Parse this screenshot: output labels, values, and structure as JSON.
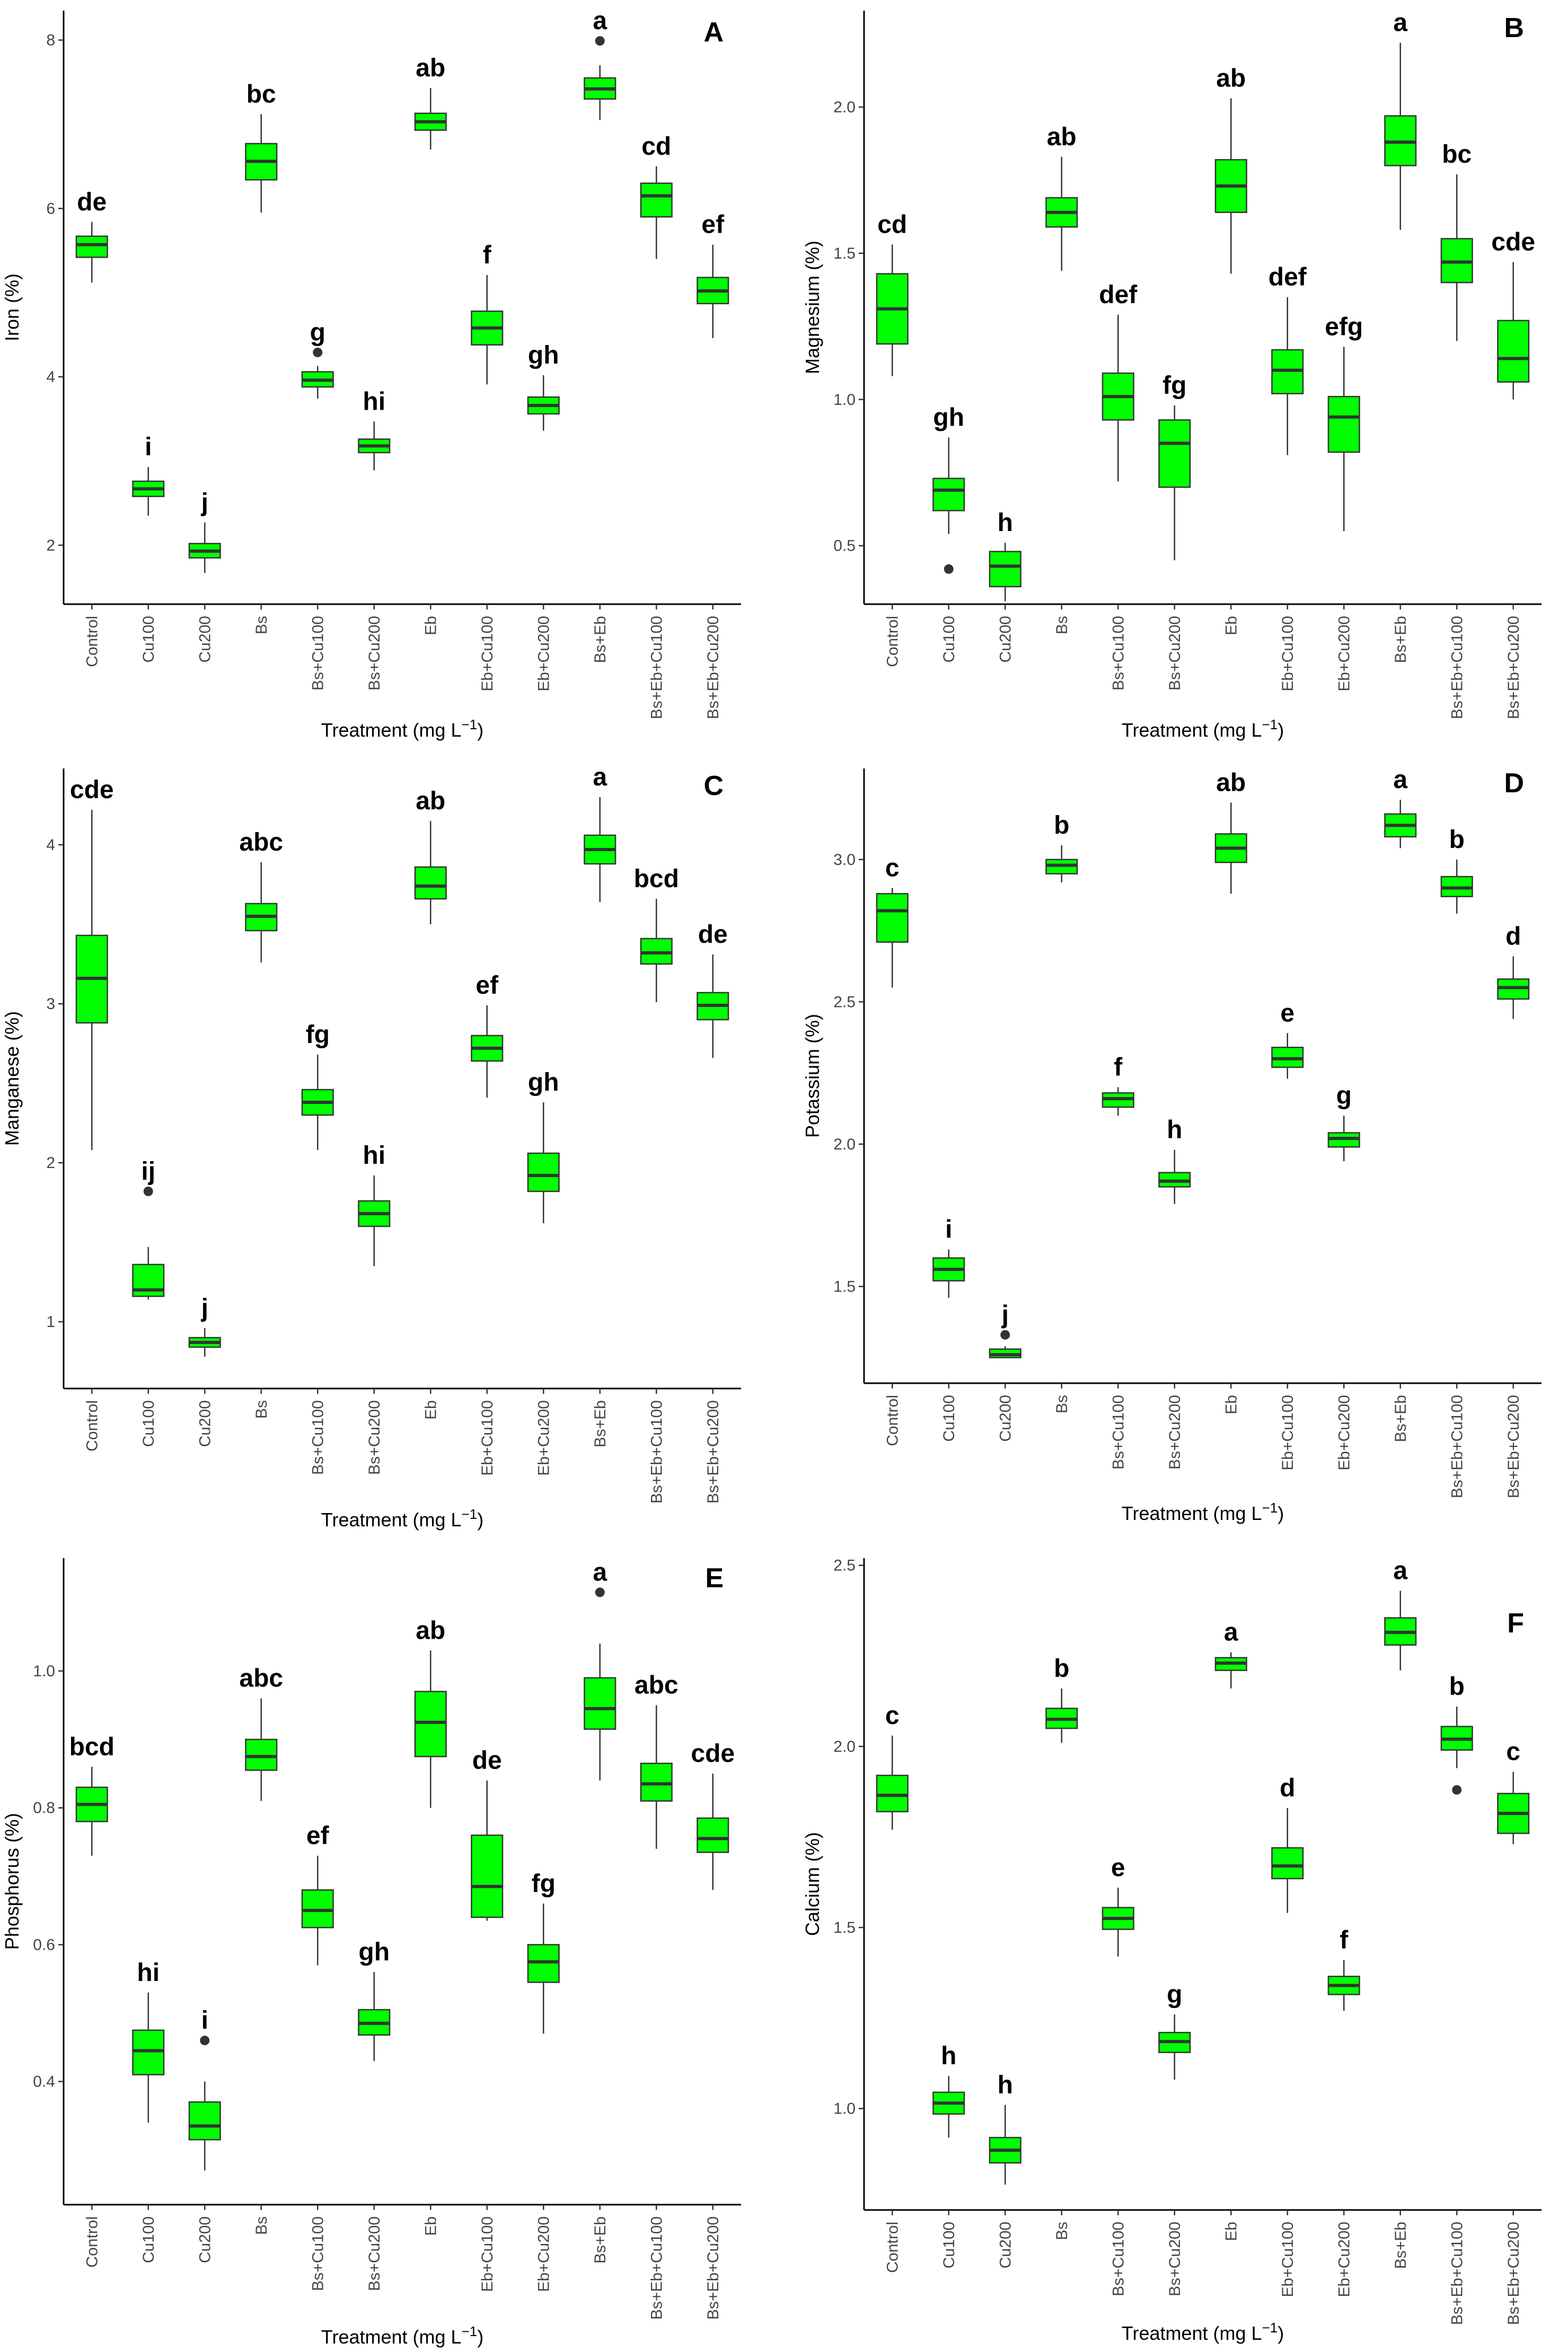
{
  "figure": {
    "box_fill": "#00FF00",
    "box_stroke": "#333333"
  },
  "chart_data": [
    {
      "type": "box",
      "panel_label": "A",
      "xlabel": "Treatment (mg L",
      "xlabel_sup": "−1",
      "xlabel_end": ")",
      "ylabel": "Iron (%)",
      "ylim": [
        1.3,
        8.35
      ],
      "yticks": [
        2,
        4,
        6,
        8
      ],
      "categories": [
        "Control",
        "Cu100",
        "Cu200",
        "Bs",
        "Bs+Cu100",
        "Bs+Cu200",
        "Eb",
        "Eb+Cu100",
        "Eb+Cu200",
        "Bs+Eb",
        "Bs+Eb+Cu100",
        "Bs+Eb+Cu200"
      ],
      "boxes": [
        {
          "min": 5.12,
          "q1": 5.42,
          "median": 5.57,
          "q3": 5.67,
          "max": 5.84,
          "outliers": [],
          "letter": "de"
        },
        {
          "min": 2.35,
          "q1": 2.58,
          "median": 2.67,
          "q3": 2.76,
          "max": 2.93,
          "outliers": [],
          "letter": "i"
        },
        {
          "min": 1.67,
          "q1": 1.85,
          "median": 1.93,
          "q3": 2.02,
          "max": 2.27,
          "outliers": [],
          "letter": "j"
        },
        {
          "min": 5.95,
          "q1": 6.34,
          "median": 6.56,
          "q3": 6.77,
          "max": 7.12,
          "outliers": [],
          "letter": "bc"
        },
        {
          "min": 3.74,
          "q1": 3.88,
          "median": 3.96,
          "q3": 4.06,
          "max": 4.13,
          "outliers": [
            4.29
          ],
          "letter": "g"
        },
        {
          "min": 2.89,
          "q1": 3.1,
          "median": 3.18,
          "q3": 3.26,
          "max": 3.47,
          "outliers": [],
          "letter": "hi"
        },
        {
          "min": 6.7,
          "q1": 6.93,
          "median": 7.03,
          "q3": 7.13,
          "max": 7.43,
          "outliers": [],
          "letter": "ab"
        },
        {
          "min": 3.91,
          "q1": 4.38,
          "median": 4.58,
          "q3": 4.78,
          "max": 5.21,
          "outliers": [],
          "letter": "f"
        },
        {
          "min": 3.36,
          "q1": 3.56,
          "median": 3.66,
          "q3": 3.76,
          "max": 4.02,
          "outliers": [],
          "letter": "gh"
        },
        {
          "min": 7.05,
          "q1": 7.3,
          "median": 7.42,
          "q3": 7.55,
          "max": 7.7,
          "outliers": [
            7.99
          ],
          "letter": "a"
        },
        {
          "min": 5.4,
          "q1": 5.9,
          "median": 6.15,
          "q3": 6.3,
          "max": 6.5,
          "outliers": [],
          "letter": "cd"
        },
        {
          "min": 4.46,
          "q1": 4.87,
          "median": 5.02,
          "q3": 5.18,
          "max": 5.57,
          "outliers": [],
          "letter": "ef"
        }
      ]
    },
    {
      "type": "box",
      "panel_label": "B",
      "xlabel": "Treatment (mg L",
      "xlabel_sup": "−1",
      "xlabel_end": ")",
      "ylabel": "Magnesium (%)",
      "ylim": [
        0.3,
        2.33
      ],
      "yticks": [
        0.5,
        1.0,
        1.5,
        2.0
      ],
      "categories": [
        "Control",
        "Cu100",
        "Cu200",
        "Bs",
        "Bs+Cu100",
        "Bs+Cu200",
        "Eb",
        "Eb+Cu100",
        "Eb+Cu200",
        "Bs+Eb",
        "Bs+Eb+Cu100",
        "Bs+Eb+Cu200"
      ],
      "boxes": [
        {
          "min": 1.08,
          "q1": 1.19,
          "median": 1.31,
          "q3": 1.43,
          "max": 1.53,
          "outliers": [],
          "letter": "cd"
        },
        {
          "min": 0.54,
          "q1": 0.62,
          "median": 0.69,
          "q3": 0.73,
          "max": 0.87,
          "outliers": [
            0.42
          ],
          "letter": "gh"
        },
        {
          "min": 0.31,
          "q1": 0.36,
          "median": 0.43,
          "q3": 0.48,
          "max": 0.51,
          "outliers": [],
          "letter": "h"
        },
        {
          "min": 1.44,
          "q1": 1.59,
          "median": 1.64,
          "q3": 1.69,
          "max": 1.83,
          "outliers": [],
          "letter": "ab"
        },
        {
          "min": 0.72,
          "q1": 0.93,
          "median": 1.01,
          "q3": 1.09,
          "max": 1.29,
          "outliers": [],
          "letter": "def"
        },
        {
          "min": 0.45,
          "q1": 0.7,
          "median": 0.85,
          "q3": 0.93,
          "max": 0.98,
          "outliers": [],
          "letter": "fg"
        },
        {
          "min": 1.43,
          "q1": 1.64,
          "median": 1.73,
          "q3": 1.82,
          "max": 2.03,
          "outliers": [],
          "letter": "ab"
        },
        {
          "min": 0.81,
          "q1": 1.02,
          "median": 1.1,
          "q3": 1.17,
          "max": 1.35,
          "outliers": [],
          "letter": "def"
        },
        {
          "min": 0.55,
          "q1": 0.82,
          "median": 0.94,
          "q3": 1.01,
          "max": 1.18,
          "outliers": [],
          "letter": "efg"
        },
        {
          "min": 1.58,
          "q1": 1.8,
          "median": 1.88,
          "q3": 1.97,
          "max": 2.22,
          "outliers": [],
          "letter": "a"
        },
        {
          "min": 1.2,
          "q1": 1.4,
          "median": 1.47,
          "q3": 1.55,
          "max": 1.77,
          "outliers": [],
          "letter": "bc"
        },
        {
          "min": 1.0,
          "q1": 1.06,
          "median": 1.14,
          "q3": 1.27,
          "max": 1.47,
          "outliers": [],
          "letter": "cde"
        }
      ]
    },
    {
      "type": "box",
      "panel_label": "C",
      "xlabel": "Treatment (mg L",
      "xlabel_sup": "−1",
      "xlabel_end": ")",
      "ylabel": "Manganese (%)",
      "ylim": [
        0.58,
        4.48
      ],
      "yticks": [
        1,
        2,
        3,
        4
      ],
      "categories": [
        "Control",
        "Cu100",
        "Cu200",
        "Bs",
        "Bs+Cu100",
        "Bs+Cu200",
        "Eb",
        "Eb+Cu100",
        "Eb+Cu200",
        "Bs+Eb",
        "Bs+Eb+Cu100",
        "Bs+Eb+Cu200"
      ],
      "boxes": [
        {
          "min": 2.08,
          "q1": 2.88,
          "median": 3.16,
          "q3": 3.43,
          "max": 4.22,
          "outliers": [],
          "letter": "cde"
        },
        {
          "min": 1.14,
          "q1": 1.16,
          "median": 1.2,
          "q3": 1.36,
          "max": 1.47,
          "outliers": [
            1.82
          ],
          "letter": "ij"
        },
        {
          "min": 0.78,
          "q1": 0.84,
          "median": 0.87,
          "q3": 0.9,
          "max": 0.96,
          "outliers": [],
          "letter": "j"
        },
        {
          "min": 3.26,
          "q1": 3.46,
          "median": 3.55,
          "q3": 3.63,
          "max": 3.89,
          "outliers": [],
          "letter": "abc"
        },
        {
          "min": 2.08,
          "q1": 2.3,
          "median": 2.38,
          "q3": 2.46,
          "max": 2.68,
          "outliers": [],
          "letter": "fg"
        },
        {
          "min": 1.35,
          "q1": 1.6,
          "median": 1.68,
          "q3": 1.76,
          "max": 1.92,
          "outliers": [],
          "letter": "hi"
        },
        {
          "min": 3.5,
          "q1": 3.66,
          "median": 3.74,
          "q3": 3.86,
          "max": 4.15,
          "outliers": [],
          "letter": "ab"
        },
        {
          "min": 2.41,
          "q1": 2.64,
          "median": 2.72,
          "q3": 2.8,
          "max": 2.99,
          "outliers": [],
          "letter": "ef"
        },
        {
          "min": 1.62,
          "q1": 1.82,
          "median": 1.92,
          "q3": 2.06,
          "max": 2.38,
          "outliers": [],
          "letter": "gh"
        },
        {
          "min": 3.64,
          "q1": 3.88,
          "median": 3.97,
          "q3": 4.06,
          "max": 4.3,
          "outliers": [],
          "letter": "a"
        },
        {
          "min": 3.01,
          "q1": 3.25,
          "median": 3.32,
          "q3": 3.41,
          "max": 3.66,
          "outliers": [],
          "letter": "bcd"
        },
        {
          "min": 2.66,
          "q1": 2.9,
          "median": 2.99,
          "q3": 3.07,
          "max": 3.31,
          "outliers": [],
          "letter": "de"
        }
      ]
    },
    {
      "type": "box",
      "panel_label": "D",
      "xlabel": "Treatment (mg L",
      "xlabel_sup": "−1",
      "xlabel_end": ")",
      "ylabel": "Potassium (%)",
      "ylim": [
        1.16,
        3.32
      ],
      "yticks": [
        1.5,
        2.0,
        2.5,
        3.0
      ],
      "categories": [
        "Control",
        "Cu100",
        "Cu200",
        "Bs",
        "Bs+Cu100",
        "Bs+Cu200",
        "Eb",
        "Eb+Cu100",
        "Eb+Cu200",
        "Bs+Eb",
        "Bs+Eb+Cu100",
        "Bs+Eb+Cu200"
      ],
      "boxes": [
        {
          "min": 2.55,
          "q1": 2.71,
          "median": 2.82,
          "q3": 2.88,
          "max": 2.9,
          "outliers": [],
          "letter": "c"
        },
        {
          "min": 1.46,
          "q1": 1.52,
          "median": 1.56,
          "q3": 1.6,
          "max": 1.63,
          "outliers": [],
          "letter": "i"
        },
        {
          "min": 1.25,
          "q1": 1.25,
          "median": 1.26,
          "q3": 1.28,
          "max": 1.29,
          "outliers": [
            1.33
          ],
          "letter": "j"
        },
        {
          "min": 2.92,
          "q1": 2.95,
          "median": 2.98,
          "q3": 3.0,
          "max": 3.05,
          "outliers": [],
          "letter": "b"
        },
        {
          "min": 2.1,
          "q1": 2.13,
          "median": 2.16,
          "q3": 2.18,
          "max": 2.2,
          "outliers": [],
          "letter": "f"
        },
        {
          "min": 1.79,
          "q1": 1.85,
          "median": 1.87,
          "q3": 1.9,
          "max": 1.98,
          "outliers": [],
          "letter": "h"
        },
        {
          "min": 2.88,
          "q1": 2.99,
          "median": 3.04,
          "q3": 3.09,
          "max": 3.2,
          "outliers": [],
          "letter": "ab"
        },
        {
          "min": 2.23,
          "q1": 2.27,
          "median": 2.3,
          "q3": 2.34,
          "max": 2.39,
          "outliers": [],
          "letter": "e"
        },
        {
          "min": 1.94,
          "q1": 1.99,
          "median": 2.02,
          "q3": 2.04,
          "max": 2.1,
          "outliers": [],
          "letter": "g"
        },
        {
          "min": 3.04,
          "q1": 3.08,
          "median": 3.12,
          "q3": 3.16,
          "max": 3.21,
          "outliers": [],
          "letter": "a"
        },
        {
          "min": 2.81,
          "q1": 2.87,
          "median": 2.9,
          "q3": 2.94,
          "max": 3.0,
          "outliers": [],
          "letter": "b"
        },
        {
          "min": 2.44,
          "q1": 2.51,
          "median": 2.55,
          "q3": 2.58,
          "max": 2.66,
          "outliers": [],
          "letter": "d"
        }
      ]
    },
    {
      "type": "box",
      "panel_label": "E",
      "xlabel": "Treatment (mg L",
      "xlabel_sup": "−1",
      "xlabel_end": ")",
      "ylabel": "Phosphorus (%)",
      "ylim": [
        0.22,
        1.165
      ],
      "yticks": [
        0.4,
        0.6,
        0.8,
        1.0
      ],
      "categories": [
        "Control",
        "Cu100",
        "Cu200",
        "Bs",
        "Bs+Cu100",
        "Bs+Cu200",
        "Eb",
        "Eb+Cu100",
        "Eb+Cu200",
        "Bs+Eb",
        "Bs+Eb+Cu100",
        "Bs+Eb+Cu200"
      ],
      "boxes": [
        {
          "min": 0.73,
          "q1": 0.78,
          "median": 0.805,
          "q3": 0.83,
          "max": 0.86,
          "outliers": [],
          "letter": "bcd"
        },
        {
          "min": 0.34,
          "q1": 0.41,
          "median": 0.445,
          "q3": 0.475,
          "max": 0.53,
          "outliers": [],
          "letter": "hi"
        },
        {
          "min": 0.27,
          "q1": 0.315,
          "median": 0.335,
          "q3": 0.37,
          "max": 0.4,
          "outliers": [
            0.46
          ],
          "letter": "i"
        },
        {
          "min": 0.81,
          "q1": 0.855,
          "median": 0.875,
          "q3": 0.9,
          "max": 0.96,
          "outliers": [],
          "letter": "abc"
        },
        {
          "min": 0.57,
          "q1": 0.625,
          "median": 0.65,
          "q3": 0.68,
          "max": 0.73,
          "outliers": [],
          "letter": "ef"
        },
        {
          "min": 0.43,
          "q1": 0.468,
          "median": 0.485,
          "q3": 0.505,
          "max": 0.56,
          "outliers": [],
          "letter": "gh"
        },
        {
          "min": 0.8,
          "q1": 0.875,
          "median": 0.925,
          "q3": 0.97,
          "max": 1.03,
          "outliers": [],
          "letter": "ab"
        },
        {
          "min": 0.635,
          "q1": 0.64,
          "median": 0.685,
          "q3": 0.76,
          "max": 0.84,
          "outliers": [],
          "letter": "de"
        },
        {
          "min": 0.47,
          "q1": 0.545,
          "median": 0.575,
          "q3": 0.6,
          "max": 0.66,
          "outliers": [],
          "letter": "fg"
        },
        {
          "min": 0.84,
          "q1": 0.915,
          "median": 0.945,
          "q3": 0.99,
          "max": 1.04,
          "outliers": [
            1.115
          ],
          "letter": "a"
        },
        {
          "min": 0.74,
          "q1": 0.81,
          "median": 0.835,
          "q3": 0.865,
          "max": 0.95,
          "outliers": [],
          "letter": "abc"
        },
        {
          "min": 0.68,
          "q1": 0.735,
          "median": 0.755,
          "q3": 0.785,
          "max": 0.85,
          "outliers": [],
          "letter": "cde"
        }
      ]
    },
    {
      "type": "box",
      "panel_label": "F",
      "xlabel": "Treatment (mg L",
      "xlabel_sup": "−1",
      "xlabel_end": ")",
      "ylabel": "Calcium (%)",
      "ylim": [
        0.72,
        2.52
      ],
      "yticks": [
        1.0,
        1.5,
        2.0,
        2.5
      ],
      "categories": [
        "Control",
        "Cu100",
        "Cu200",
        "Bs",
        "Bs+Cu100",
        "Bs+Cu200",
        "Eb",
        "Eb+Cu100",
        "Eb+Cu200",
        "Bs+Eb",
        "Bs+Eb+Cu100",
        "Bs+Eb+Cu200"
      ],
      "boxes": [
        {
          "min": 1.77,
          "q1": 1.82,
          "median": 1.865,
          "q3": 1.92,
          "max": 2.03,
          "outliers": [],
          "letter": "c"
        },
        {
          "min": 0.92,
          "q1": 0.985,
          "median": 1.015,
          "q3": 1.045,
          "max": 1.09,
          "outliers": [],
          "letter": "h"
        },
        {
          "min": 0.79,
          "q1": 0.85,
          "median": 0.885,
          "q3": 0.92,
          "max": 1.01,
          "outliers": [],
          "letter": "h"
        },
        {
          "min": 2.01,
          "q1": 2.05,
          "median": 2.075,
          "q3": 2.105,
          "max": 2.16,
          "outliers": [],
          "letter": "b"
        },
        {
          "min": 1.42,
          "q1": 1.495,
          "median": 1.525,
          "q3": 1.555,
          "max": 1.61,
          "outliers": [],
          "letter": "e"
        },
        {
          "min": 1.08,
          "q1": 1.155,
          "median": 1.185,
          "q3": 1.21,
          "max": 1.26,
          "outliers": [],
          "letter": "g"
        },
        {
          "min": 2.16,
          "q1": 2.21,
          "median": 2.23,
          "q3": 2.245,
          "max": 2.26,
          "outliers": [],
          "letter": "a"
        },
        {
          "min": 1.54,
          "q1": 1.635,
          "median": 1.67,
          "q3": 1.72,
          "max": 1.83,
          "outliers": [],
          "letter": "d"
        },
        {
          "min": 1.27,
          "q1": 1.315,
          "median": 1.34,
          "q3": 1.365,
          "max": 1.41,
          "outliers": [],
          "letter": "f"
        },
        {
          "min": 2.21,
          "q1": 2.28,
          "median": 2.315,
          "q3": 2.355,
          "max": 2.43,
          "outliers": [],
          "letter": "a"
        },
        {
          "min": 1.94,
          "q1": 1.99,
          "median": 2.02,
          "q3": 2.055,
          "max": 2.11,
          "outliers": [
            1.88
          ],
          "letter": "b"
        },
        {
          "min": 1.73,
          "q1": 1.76,
          "median": 1.815,
          "q3": 1.87,
          "max": 1.93,
          "outliers": [],
          "letter": "c"
        }
      ]
    }
  ]
}
